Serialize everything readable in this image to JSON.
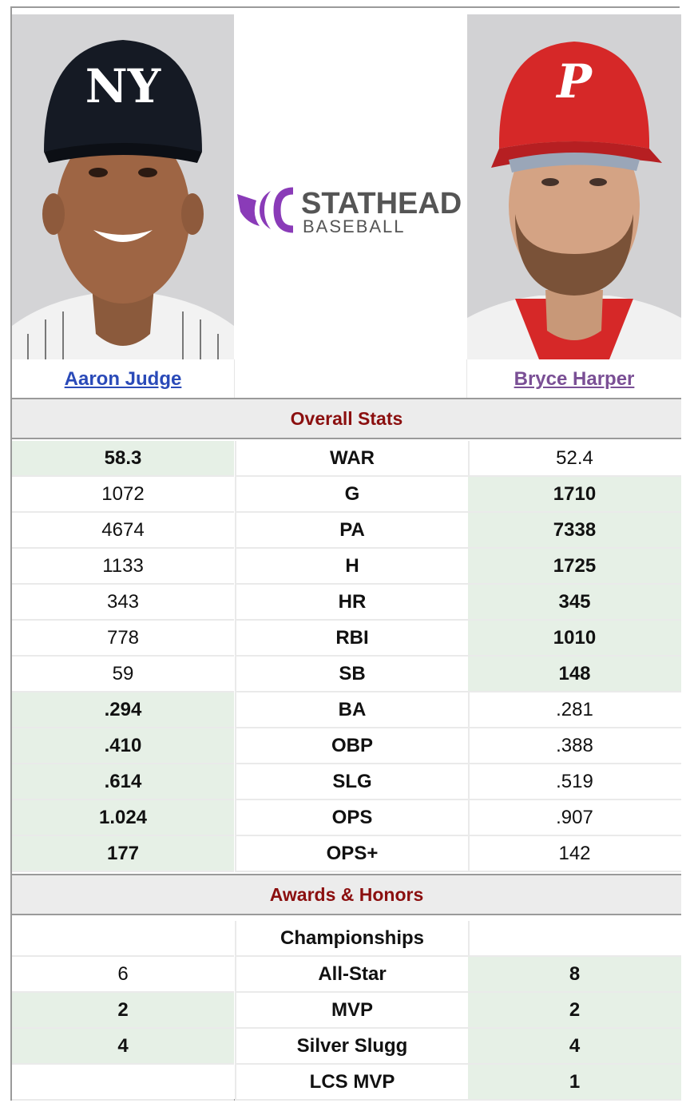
{
  "players": {
    "left": {
      "name": "Aaron Judge",
      "cap_logo": "NY",
      "cap_color": "#151a24"
    },
    "right": {
      "name": "Bryce Harper",
      "cap_logo": "P",
      "cap_color": "#d62828"
    }
  },
  "logo": {
    "line1": "STATHEAD",
    "line2": "BASEBALL",
    "accent": "#8a3bb8"
  },
  "overall": {
    "title": "Overall Stats",
    "rows": [
      {
        "stat": "WAR",
        "left": "58.3",
        "right": "52.4",
        "winner": "left"
      },
      {
        "stat": "G",
        "left": "1072",
        "right": "1710",
        "winner": "right"
      },
      {
        "stat": "PA",
        "left": "4674",
        "right": "7338",
        "winner": "right"
      },
      {
        "stat": "H",
        "left": "1133",
        "right": "1725",
        "winner": "right"
      },
      {
        "stat": "HR",
        "left": "343",
        "right": "345",
        "winner": "right"
      },
      {
        "stat": "RBI",
        "left": "778",
        "right": "1010",
        "winner": "right"
      },
      {
        "stat": "SB",
        "left": "59",
        "right": "148",
        "winner": "right"
      },
      {
        "stat": "BA",
        "left": ".294",
        "right": ".281",
        "winner": "left"
      },
      {
        "stat": "OBP",
        "left": ".410",
        "right": ".388",
        "winner": "left"
      },
      {
        "stat": "SLG",
        "left": ".614",
        "right": ".519",
        "winner": "left"
      },
      {
        "stat": "OPS",
        "left": "1.024",
        "right": ".907",
        "winner": "left"
      },
      {
        "stat": "OPS+",
        "left": "177",
        "right": "142",
        "winner": "left"
      }
    ]
  },
  "awards": {
    "title": "Awards & Honors",
    "rows": [
      {
        "stat": "Championships",
        "left": "",
        "right": "",
        "winner": "none"
      },
      {
        "stat": "All-Star",
        "left": "6",
        "right": "8",
        "winner": "right"
      },
      {
        "stat": "MVP",
        "left": "2",
        "right": "2",
        "winner": "both"
      },
      {
        "stat": "Silver Slugg",
        "left": "4",
        "right": "4",
        "winner": "both"
      },
      {
        "stat": "LCS MVP",
        "left": "",
        "right": "1",
        "winner": "right"
      }
    ]
  }
}
